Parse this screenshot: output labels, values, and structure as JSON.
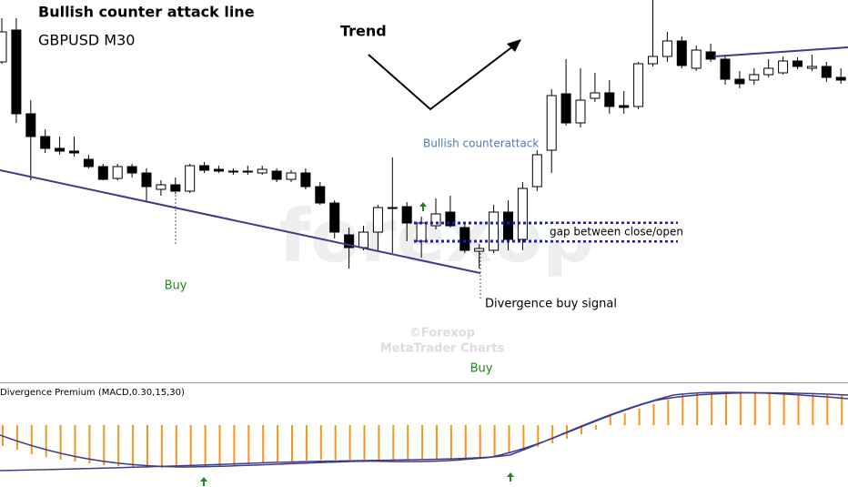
{
  "chart_data": [
    {
      "type": "candlestick",
      "title": "Bullish counter attack line",
      "subtitle": "GBPUSD M30",
      "up_color": "#ffffff",
      "down_color": "#000000",
      "ylim": [
        0,
        420
      ],
      "open": [
        352,
        387,
        295,
        270,
        257,
        254,
        245,
        237,
        224,
        237,
        230,
        212,
        217,
        210,
        238,
        234,
        232,
        232,
        230,
        232,
        223,
        230,
        215,
        197,
        162,
        148,
        165,
        191,
        193,
        155,
        172,
        187,
        170,
        144,
        145,
        187,
        157,
        215,
        255,
        317,
        285,
        312,
        318,
        304,
        303,
        350,
        358,
        375,
        345,
        363,
        355,
        333,
        332,
        338,
        340,
        353,
        345,
        347,
        335
      ],
      "high": [
        400,
        400,
        310,
        278,
        270,
        270,
        250,
        240,
        240,
        240,
        235,
        222,
        225,
        240,
        242,
        238,
        235,
        238,
        238,
        235,
        233,
        235,
        220,
        200,
        170,
        172,
        195,
        247,
        198,
        182,
        202,
        205,
        175,
        152,
        195,
        200,
        220,
        255,
        322,
        355,
        345,
        340,
        332,
        320,
        352,
        420,
        385,
        380,
        370,
        372,
        360,
        342,
        345,
        355,
        358,
        357,
        360,
        352,
        345
      ],
      "low": [
        350,
        285,
        222,
        252,
        250,
        248,
        235,
        222,
        222,
        225,
        198,
        205,
        207,
        208,
        230,
        230,
        228,
        228,
        228,
        220,
        220,
        212,
        195,
        158,
        125,
        145,
        145,
        142,
        155,
        137,
        168,
        170,
        142,
        125,
        142,
        145,
        145,
        210,
        230,
        282,
        280,
        308,
        295,
        295,
        300,
        347,
        352,
        345,
        342,
        352,
        327,
        323,
        327,
        335,
        338,
        344,
        342,
        330,
        328
      ],
      "close": [
        385,
        295,
        270,
        257,
        254,
        252,
        237,
        223,
        237,
        230,
        215,
        217,
        210,
        238,
        233,
        232,
        231,
        231,
        234,
        223,
        230,
        215,
        197,
        165,
        148,
        165,
        192,
        192,
        175,
        175,
        185,
        172,
        145,
        147,
        187,
        157,
        213,
        250,
        315,
        285,
        310,
        318,
        303,
        302,
        350,
        358,
        375,
        348,
        365,
        355,
        333,
        328,
        338,
        345,
        353,
        347,
        347,
        335,
        332
      ],
      "annotations": [
        "Trend",
        "Bullish counterattack",
        "gap between close/open",
        "Buy",
        "Divergence buy signal",
        "Buy",
        "©Forexop",
        "MetaTrader Charts",
        "forexop"
      ]
    },
    {
      "type": "bar",
      "title": "Divergence Premium (MACD,0.30,15,30)",
      "color": "#f7931e",
      "ylim": [
        -58,
        42
      ],
      "values": [
        -23,
        -27,
        -32,
        -35,
        -38,
        -40,
        -42,
        -44,
        -45,
        -46,
        -47,
        -47,
        -47,
        -46,
        -46,
        -45,
        -44,
        -43,
        -42,
        -41,
        -40,
        -39,
        -38,
        -38,
        -38,
        -38,
        -38,
        -38,
        -38,
        -38,
        -38,
        -38,
        -37,
        -36,
        -34,
        -31,
        -28,
        -24,
        -20,
        -15,
        -10,
        -5,
        10,
        13,
        18,
        23,
        28,
        34,
        35,
        35,
        35,
        35,
        35,
        35,
        35,
        35,
        35,
        34,
        33
      ]
    }
  ]
}
